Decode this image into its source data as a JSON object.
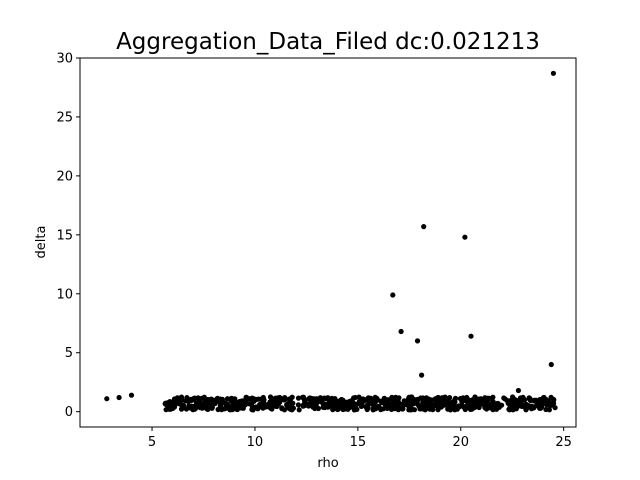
{
  "chart_data": {
    "type": "scatter",
    "title": "Aggregation_Data_Filed  dc:0.021213",
    "xlabel": "rho",
    "ylabel": "delta",
    "xlim": [
      1.5,
      25.6
    ],
    "ylim": [
      -1.3,
      30.0
    ],
    "xticks": [
      5,
      10,
      15,
      20,
      25
    ],
    "yticks": [
      0,
      5,
      10,
      15,
      20,
      25,
      30
    ],
    "grid": false,
    "marker_color": "#000000",
    "outliers": [
      {
        "x": 24.5,
        "y": 28.7
      },
      {
        "x": 18.2,
        "y": 15.7
      },
      {
        "x": 20.2,
        "y": 14.8
      },
      {
        "x": 16.7,
        "y": 9.9
      },
      {
        "x": 17.1,
        "y": 6.8
      },
      {
        "x": 17.9,
        "y": 6.0
      },
      {
        "x": 20.5,
        "y": 6.4
      },
      {
        "x": 18.1,
        "y": 3.1
      },
      {
        "x": 24.4,
        "y": 4.0
      },
      {
        "x": 22.8,
        "y": 1.8
      },
      {
        "x": 2.8,
        "y": 1.1
      },
      {
        "x": 3.4,
        "y": 1.2
      },
      {
        "x": 4.0,
        "y": 1.4
      }
    ],
    "cluster": {
      "description_free": true,
      "x_range": [
        5.6,
        24.6
      ],
      "y_band_min": 0.15,
      "y_band_max": 1.25,
      "count": 760
    }
  }
}
